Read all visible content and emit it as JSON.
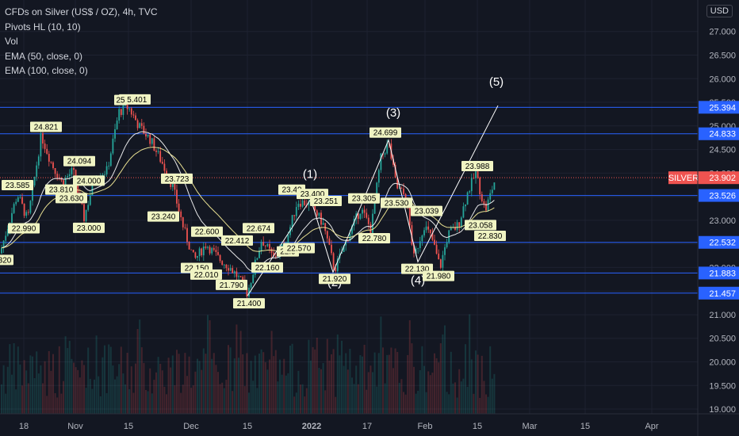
{
  "legend": {
    "title": "CFDs on Silver (US$ / OZ), 4h, TVC",
    "pivots": "Pivots HL (10, 10)",
    "vol": "Vol",
    "ema50": "EMA (50, close, 0)",
    "ema100": "EMA (100, close, 0)"
  },
  "currency_button": "USD",
  "colors": {
    "background": "#131722",
    "grid": "#1e2230",
    "candle_up": "#26a69a",
    "candle_down": "#ef5350",
    "level_line": "#2962ff",
    "level_label_bg": "#2962ff",
    "price_label_bg": "#ef5350",
    "ema_fast": "#ffffff",
    "ema_slow": "#fff59d",
    "pivot_label_bg": "#f0f4c3",
    "axis_text": "#b2b5be"
  },
  "icons": [
    "usd-currency-button"
  ],
  "chart_data": {
    "type": "candlestick",
    "symbol": "SILVER",
    "current_price": "23.902",
    "y_axis": {
      "range": [
        18.9,
        27.6
      ],
      "ticks": [
        "27.000",
        "26.500",
        "26.000",
        "25.500",
        "25.000",
        "24.500",
        "24.000",
        "23.500",
        "23.000",
        "22.500",
        "22.000",
        "21.500",
        "21.000",
        "20.500",
        "20.000",
        "19.500",
        "19.000"
      ]
    },
    "x_axis": {
      "ticks": [
        "18",
        "Nov",
        "15",
        "Dec",
        "15",
        "2022",
        "17",
        "Feb",
        "15",
        "Mar",
        "15",
        "Apr"
      ],
      "bold_ticks": [
        "2022"
      ]
    },
    "horizontal_levels": [
      "25.394",
      "24.833",
      "23.526",
      "22.532",
      "21.883",
      "21.457"
    ],
    "pivot_labels": [
      {
        "text": "24.821",
        "x": 0.0,
        "y": 24.821,
        "dir": "high"
      },
      {
        "text": "23.585",
        "x": 0.0,
        "y": 23.585,
        "dir": "high"
      },
      {
        "text": "22.990",
        "x": 0.0,
        "y": 22.99,
        "dir": "low"
      },
      {
        "text": "24.094",
        "x": 0.0,
        "y": 24.094,
        "dir": "high"
      },
      {
        "text": "23.810",
        "x": 0.0,
        "y": 23.81,
        "dir": "low"
      },
      {
        "text": "23.630",
        "x": 0.0,
        "y": 23.63,
        "dir": "low"
      },
      {
        "text": "24.000",
        "x": 0.0,
        "y": 24.0,
        "dir": "low"
      },
      {
        "text": "23.000",
        "x": 0.0,
        "y": 23.0,
        "dir": "low"
      },
      {
        "text": "25.401",
        "x": 0.0,
        "y": 25.401,
        "dir": "high"
      },
      {
        "text": "25",
        "x": 0.0,
        "y": 25.39,
        "dir": "high"
      },
      {
        "text": "23.723",
        "x": 0.0,
        "y": 23.723,
        "dir": "high"
      },
      {
        "text": "23.240",
        "x": 0.0,
        "y": 23.24,
        "dir": "low"
      },
      {
        "text": "22.600",
        "x": 0.0,
        "y": 22.6,
        "dir": "high"
      },
      {
        "text": "22.412",
        "x": 0.0,
        "y": 22.412,
        "dir": "high"
      },
      {
        "text": "22.150",
        "x": 0.0,
        "y": 22.15,
        "dir": "low"
      },
      {
        "text": "22.010",
        "x": 0.0,
        "y": 22.01,
        "dir": "low"
      },
      {
        "text": "21.790",
        "x": 0.0,
        "y": 21.79,
        "dir": "low"
      },
      {
        "text": "21.400",
        "x": 0.0,
        "y": 21.4,
        "dir": "low"
      },
      {
        "text": "22.674",
        "x": 0.0,
        "y": 22.674,
        "dir": "high"
      },
      {
        "text": "22.160",
        "x": 0.0,
        "y": 22.16,
        "dir": "low"
      },
      {
        "text": "22.5",
        "x": 0.0,
        "y": 22.5,
        "dir": "low"
      },
      {
        "text": "22.570",
        "x": 0.0,
        "y": 22.57,
        "dir": "low"
      },
      {
        "text": "23.49",
        "x": 0.0,
        "y": 23.49,
        "dir": "high"
      },
      {
        "text": "23.400",
        "x": 0.0,
        "y": 23.4,
        "dir": "high"
      },
      {
        "text": "23.251",
        "x": 0.0,
        "y": 23.251,
        "dir": "high"
      },
      {
        "text": "21.920",
        "x": 0.0,
        "y": 21.92,
        "dir": "low"
      },
      {
        "text": "23.305",
        "x": 0.0,
        "y": 23.305,
        "dir": "high"
      },
      {
        "text": "22.780",
        "x": 0.0,
        "y": 22.78,
        "dir": "low"
      },
      {
        "text": "24.699",
        "x": 0.0,
        "y": 24.699,
        "dir": "high"
      },
      {
        "text": "23.530",
        "x": 0.0,
        "y": 23.53,
        "dir": "low"
      },
      {
        "text": "23.039",
        "x": 0.0,
        "y": 23.039,
        "dir": "high"
      },
      {
        "text": "22.130",
        "x": 0.0,
        "y": 22.13,
        "dir": "low"
      },
      {
        "text": "21.980",
        "x": 0.0,
        "y": 21.98,
        "dir": "low"
      },
      {
        "text": "23.988",
        "x": 0.0,
        "y": 23.988,
        "dir": "high"
      },
      {
        "text": "23.058",
        "x": 0.0,
        "y": 23.058,
        "dir": "low"
      },
      {
        "text": "22.830",
        "x": 0.0,
        "y": 22.83,
        "dir": "low"
      },
      {
        "text": "320",
        "x": 0.0,
        "y": 22.32,
        "dir": "low"
      }
    ],
    "wave_labels": [
      {
        "text": "(1)",
        "y": 23.9
      },
      {
        "text": "(2)",
        "y": 21.6
      },
      {
        "text": "(3)",
        "y": 25.2
      },
      {
        "text": "(4)",
        "y": 21.65
      },
      {
        "text": "(5)",
        "y": 25.85
      }
    ]
  }
}
